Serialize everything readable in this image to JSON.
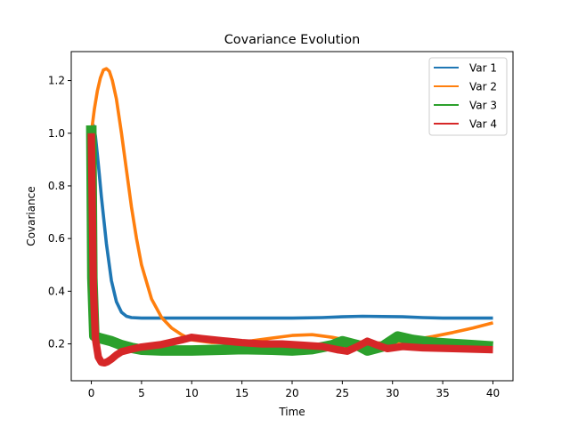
{
  "chart_data": {
    "type": "line",
    "title": "Covariance Evolution",
    "xlabel": "Time",
    "ylabel": "Covariance",
    "xlim": [
      -2,
      42
    ],
    "ylim": [
      0.06,
      1.31
    ],
    "xticks": [
      0,
      5,
      10,
      15,
      20,
      25,
      30,
      35,
      40
    ],
    "xtick_labels": [
      "0",
      "5",
      "10",
      "15",
      "20",
      "25",
      "30",
      "35",
      "40"
    ],
    "yticks": [
      0.2,
      0.4,
      0.6,
      0.8,
      1.0,
      1.2
    ],
    "ytick_labels": [
      "0.2",
      "0.4",
      "0.6",
      "0.8",
      "1.0",
      "1.2"
    ],
    "legend_position": "top-right",
    "grid": false,
    "series": [
      {
        "name": "Var 1",
        "color": "#1f77b4",
        "band_width": 0.012,
        "x": [
          0,
          0.2,
          0.4,
          0.6,
          0.8,
          1.0,
          1.5,
          2.0,
          2.5,
          3.0,
          3.5,
          4.0,
          5.0,
          6.0,
          8.0,
          10.0,
          15.0,
          20.0,
          23.0,
          25.0,
          27.0,
          29.0,
          31.0,
          33.0,
          35.0,
          37.0,
          40.0
        ],
        "y": [
          1.0,
          1.03,
          0.99,
          0.92,
          0.84,
          0.76,
          0.58,
          0.44,
          0.36,
          0.32,
          0.305,
          0.3,
          0.298,
          0.298,
          0.298,
          0.298,
          0.298,
          0.298,
          0.3,
          0.303,
          0.305,
          0.304,
          0.303,
          0.3,
          0.298,
          0.298,
          0.298
        ]
      },
      {
        "name": "Var 2",
        "color": "#ff7f0e",
        "band_width": 0.012,
        "x": [
          0,
          0.3,
          0.6,
          0.9,
          1.2,
          1.5,
          1.8,
          2.1,
          2.5,
          3.0,
          3.5,
          4.0,
          4.5,
          5.0,
          6.0,
          7.0,
          8.0,
          9.0,
          10.0,
          12.0,
          14.0,
          16.0,
          18.0,
          20.0,
          22.0,
          24.0,
          26.0,
          28.0,
          30.0,
          32.0,
          34.0,
          36.0,
          38.0,
          40.0
        ],
        "y": [
          1.0,
          1.09,
          1.16,
          1.21,
          1.24,
          1.245,
          1.235,
          1.2,
          1.13,
          1.0,
          0.86,
          0.72,
          0.6,
          0.5,
          0.37,
          0.3,
          0.26,
          0.235,
          0.215,
          0.205,
          0.205,
          0.212,
          0.222,
          0.232,
          0.235,
          0.225,
          0.21,
          0.203,
          0.205,
          0.215,
          0.228,
          0.243,
          0.26,
          0.28
        ]
      },
      {
        "name": "Var 3",
        "color": "#2ca02c",
        "band_width": 0.04,
        "x": [
          0,
          0.1,
          0.3,
          0.6,
          1.0,
          1.5,
          2.0,
          3.0,
          4.0,
          5.0,
          7.0,
          10.0,
          13.0,
          15.0,
          18.0,
          20.0,
          22.0,
          24.0,
          25.0,
          26.5,
          27.5,
          29.0,
          30.5,
          32.0,
          34.0,
          36.0,
          38.0,
          40.0
        ],
        "y": [
          1.03,
          0.45,
          0.23,
          0.225,
          0.22,
          0.215,
          0.21,
          0.195,
          0.185,
          0.178,
          0.175,
          0.175,
          0.178,
          0.18,
          0.178,
          0.175,
          0.18,
          0.195,
          0.21,
          0.195,
          0.175,
          0.19,
          0.228,
          0.215,
          0.205,
          0.2,
          0.195,
          0.19
        ]
      },
      {
        "name": "Var 4",
        "color": "#d62728",
        "band_width": 0.028,
        "x": [
          0,
          0.1,
          0.2,
          0.4,
          0.7,
          1.0,
          1.3,
          1.6,
          2.0,
          2.5,
          3.0,
          4.0,
          5.0,
          7.0,
          9.0,
          10.0,
          11.0,
          13.0,
          15.0,
          17.0,
          19.0,
          21.0,
          23.0,
          24.5,
          25.5,
          26.5,
          27.5,
          28.5,
          29.5,
          31.0,
          33.0,
          36.0,
          40.0
        ],
        "y": [
          1.0,
          0.7,
          0.42,
          0.22,
          0.15,
          0.13,
          0.128,
          0.132,
          0.142,
          0.158,
          0.17,
          0.18,
          0.188,
          0.198,
          0.215,
          0.225,
          0.22,
          0.212,
          0.205,
          0.2,
          0.2,
          0.195,
          0.19,
          0.178,
          0.172,
          0.19,
          0.21,
          0.195,
          0.182,
          0.19,
          0.185,
          0.182,
          0.178
        ]
      }
    ]
  }
}
